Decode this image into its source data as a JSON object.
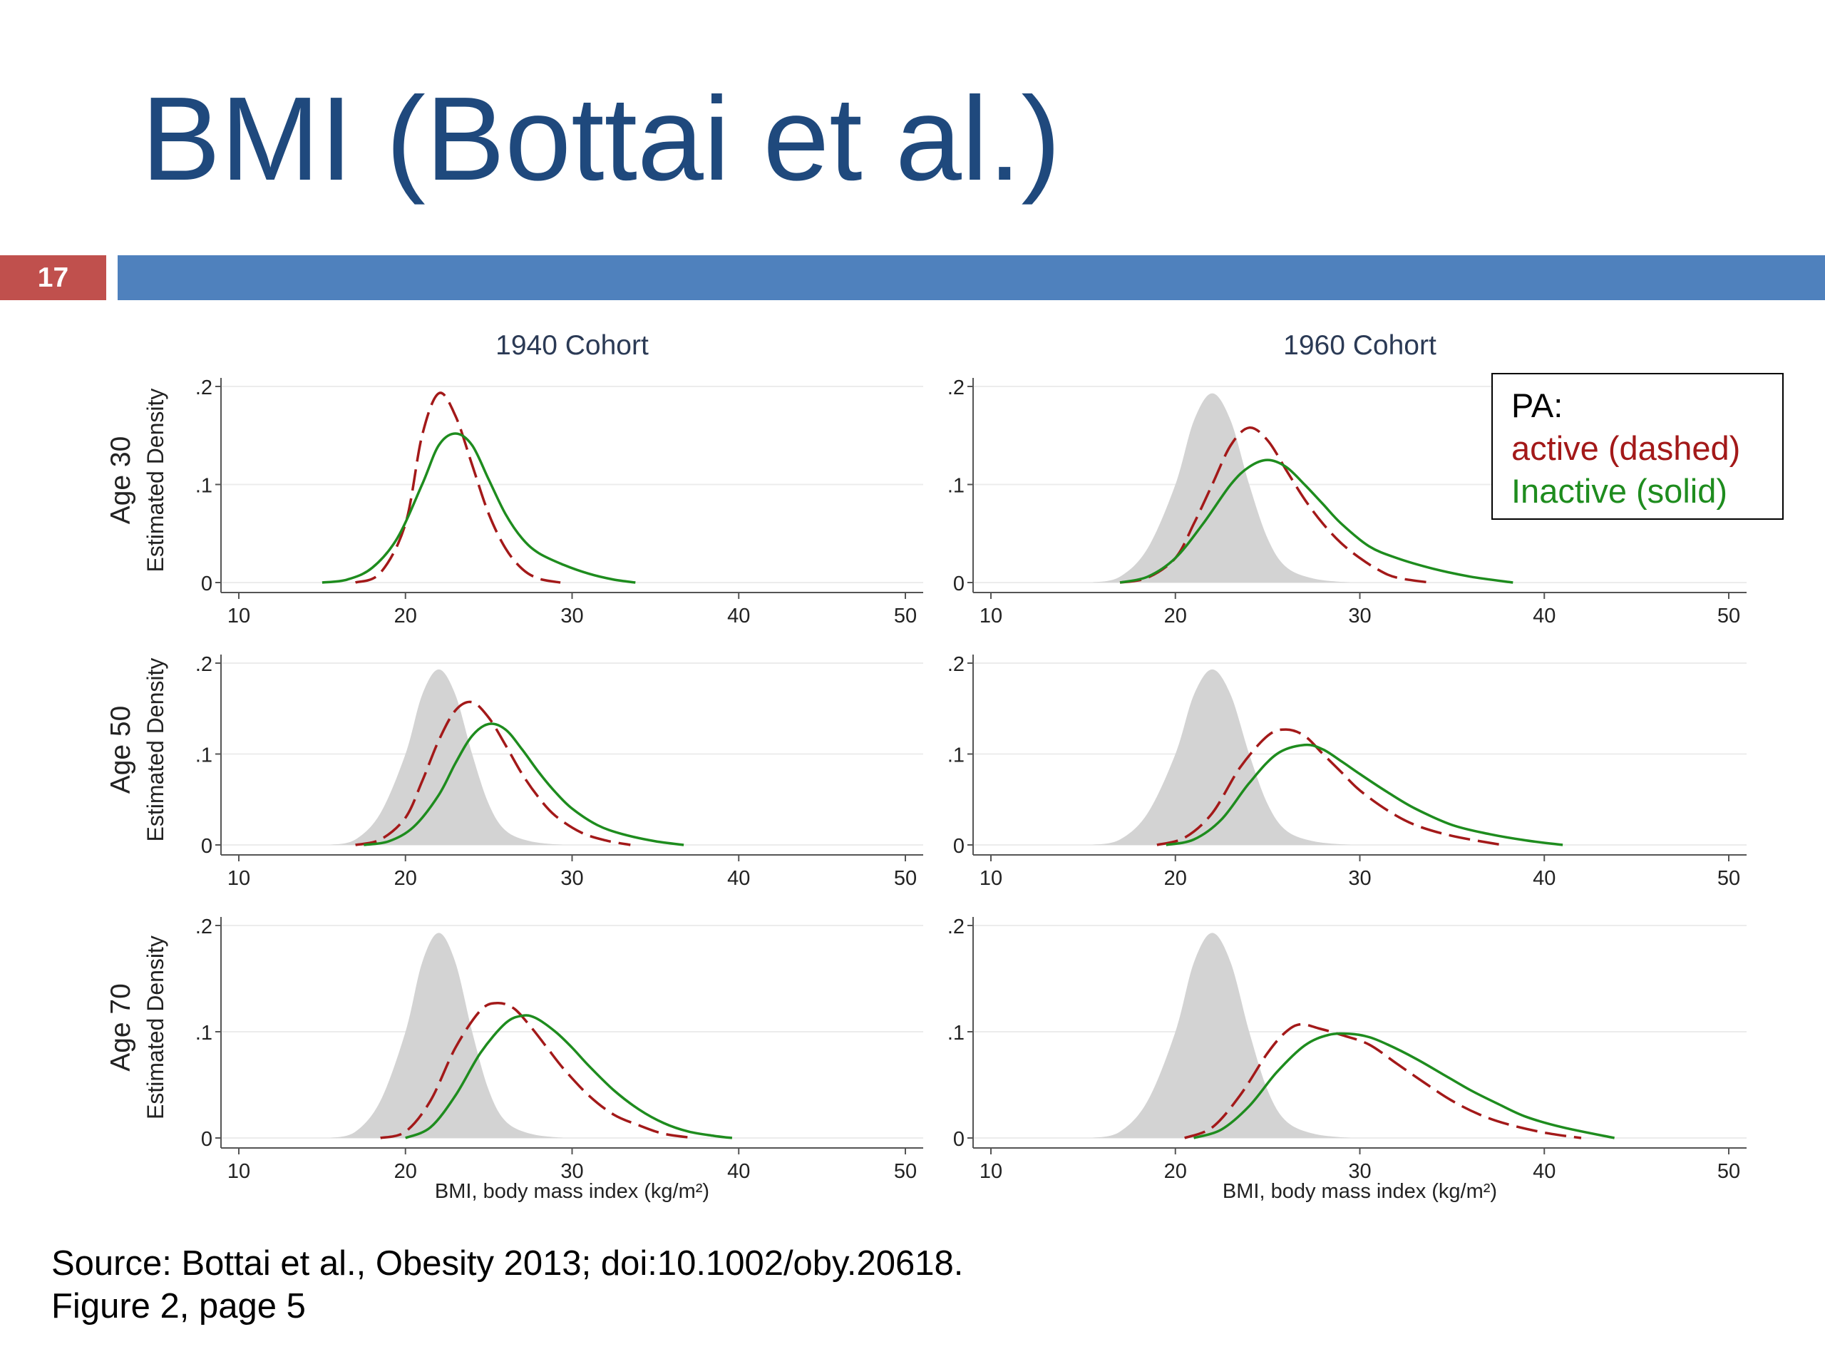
{
  "slide": {
    "title": "BMI (Bottai et al.)",
    "number": "17",
    "source_line1": "Source: Bottai et al., Obesity 2013; doi:10.1002/oby.20618.",
    "source_line2": "Figure 2, page 5"
  },
  "legend": {
    "title": "PA:",
    "active": "active (dashed)",
    "inactive": "Inactive (solid)"
  },
  "colors": {
    "title": "#1f497d",
    "accent_bar": "#4f81bd",
    "slide_number_bg": "#c0504d",
    "active": "#a31919",
    "inactive": "#1e8c1e",
    "reference_fill": "#d3d3d3"
  },
  "chart_data": {
    "type": "line",
    "columns": [
      "1940 Cohort",
      "1960 Cohort"
    ],
    "rows": [
      "Age 30",
      "Age 50",
      "Age 70"
    ],
    "ylabel": "Estimated Density",
    "xlabel": "BMI, body mass index (kg/m²)",
    "xlim": [
      10,
      50
    ],
    "ylim": [
      0,
      0.2
    ],
    "xticks": [
      10,
      20,
      30,
      40,
      50
    ],
    "xtick_labels": [
      "10",
      "20",
      "30",
      "40",
      "50"
    ],
    "yticks": [
      0,
      0.1,
      0.2
    ],
    "ytick_labels": [
      "0",
      ".1",
      ".2"
    ],
    "grid": true,
    "legend_position": "top-right",
    "reference": {
      "x": [
        15.5,
        17,
        18.5,
        20,
        21,
        22,
        23,
        24,
        25,
        26,
        27.5,
        29.5
      ],
      "y": [
        0,
        0.006,
        0.035,
        0.1,
        0.165,
        0.193,
        0.165,
        0.1,
        0.045,
        0.016,
        0.004,
        0
      ]
    },
    "panels": [
      {
        "row": 0,
        "col": 0,
        "show_reference": false,
        "series": [
          {
            "style": "dashed",
            "x": [
              17,
              18.5,
              20,
              21,
              22,
              23,
              24,
              25,
              26,
              27,
              28,
              29.3
            ],
            "y": [
              0,
              0.01,
              0.06,
              0.15,
              0.193,
              0.17,
              0.12,
              0.07,
              0.035,
              0.014,
              0.004,
              0
            ]
          },
          {
            "style": "solid",
            "x": [
              15,
              16.5,
              18,
              19.5,
              21,
              22,
              23,
              24,
              25,
              26,
              27,
              28,
              29.5,
              31,
              32.5,
              33.8
            ],
            "y": [
              0,
              0.003,
              0.015,
              0.045,
              0.1,
              0.14,
              0.152,
              0.14,
              0.105,
              0.07,
              0.045,
              0.03,
              0.018,
              0.009,
              0.003,
              0
            ]
          }
        ]
      },
      {
        "row": 0,
        "col": 1,
        "show_reference": true,
        "series": [
          {
            "style": "dashed",
            "x": [
              17,
              18.5,
              20,
              21,
              22,
              23,
              24,
              25,
              26,
              27,
              28,
              29,
              30,
              31,
              32,
              33.8
            ],
            "y": [
              0,
              0.005,
              0.025,
              0.06,
              0.1,
              0.14,
              0.158,
              0.145,
              0.115,
              0.085,
              0.06,
              0.04,
              0.025,
              0.013,
              0.005,
              0
            ]
          },
          {
            "style": "solid",
            "x": [
              17,
              18.5,
              20,
              21.5,
              23,
              24,
              25,
              26,
              27,
              28,
              29,
              30.5,
              32,
              34,
              36,
              38.3
            ],
            "y": [
              0,
              0.006,
              0.025,
              0.06,
              0.1,
              0.118,
              0.125,
              0.118,
              0.1,
              0.08,
              0.06,
              0.037,
              0.025,
              0.014,
              0.006,
              0
            ]
          }
        ]
      },
      {
        "row": 1,
        "col": 0,
        "show_reference": true,
        "series": [
          {
            "style": "dashed",
            "x": [
              17,
              18.5,
              20,
              21,
              22,
              23,
              24,
              25,
              26,
              27,
              28,
              29,
              30.5,
              32,
              33.5
            ],
            "y": [
              0,
              0.006,
              0.03,
              0.07,
              0.115,
              0.148,
              0.157,
              0.14,
              0.11,
              0.078,
              0.052,
              0.032,
              0.014,
              0.005,
              0
            ]
          },
          {
            "style": "solid",
            "x": [
              17.5,
              19,
              20.5,
              22,
              23,
              24,
              25,
              26,
              27,
              28,
              29,
              30,
              31.5,
              33,
              35,
              36.7
            ],
            "y": [
              0,
              0.004,
              0.02,
              0.055,
              0.09,
              0.12,
              0.133,
              0.127,
              0.105,
              0.08,
              0.058,
              0.04,
              0.022,
              0.012,
              0.004,
              0
            ]
          }
        ]
      },
      {
        "row": 1,
        "col": 1,
        "show_reference": true,
        "series": [
          {
            "style": "dashed",
            "x": [
              19,
              20.5,
              22,
              23.5,
              25,
              26,
              27,
              28,
              29,
              30,
              31.5,
              33,
              35,
              37.7
            ],
            "y": [
              0,
              0.008,
              0.035,
              0.085,
              0.12,
              0.127,
              0.12,
              0.1,
              0.08,
              0.06,
              0.038,
              0.022,
              0.01,
              0
            ]
          },
          {
            "style": "solid",
            "x": [
              19.5,
              21,
              22.5,
              24,
              25.5,
              27,
              28,
              29,
              30,
              31.5,
              33,
              35,
              37,
              39,
              41
            ],
            "y": [
              0,
              0.006,
              0.028,
              0.068,
              0.1,
              0.11,
              0.105,
              0.092,
              0.078,
              0.058,
              0.04,
              0.022,
              0.012,
              0.005,
              0
            ]
          }
        ]
      },
      {
        "row": 2,
        "col": 0,
        "show_reference": true,
        "series": [
          {
            "style": "dashed",
            "x": [
              18.5,
              20,
              21.5,
              23,
              24.5,
              25.5,
              26.5,
              27.5,
              28.5,
              29.5,
              31,
              32.5,
              34,
              35.5,
              37.3
            ],
            "y": [
              0,
              0.006,
              0.035,
              0.085,
              0.12,
              0.127,
              0.122,
              0.105,
              0.085,
              0.065,
              0.04,
              0.022,
              0.012,
              0.004,
              0
            ]
          },
          {
            "style": "solid",
            "x": [
              20,
              21.5,
              23,
              24.5,
              26,
              27,
              27.8,
              29,
              30,
              31,
              32.5,
              34,
              35.5,
              37,
              38.5,
              39.6
            ],
            "y": [
              0,
              0.01,
              0.04,
              0.08,
              0.108,
              0.115,
              0.113,
              0.1,
              0.085,
              0.068,
              0.045,
              0.027,
              0.014,
              0.006,
              0.002,
              0
            ]
          }
        ]
      },
      {
        "row": 2,
        "col": 1,
        "show_reference": true,
        "series": [
          {
            "style": "dashed",
            "x": [
              20.5,
              22,
              23.5,
              25,
              26,
              26.8,
              27.8,
              29,
              30.5,
              32,
              33.5,
              35,
              36.5,
              38,
              40,
              42
            ],
            "y": [
              0,
              0.01,
              0.04,
              0.08,
              0.1,
              0.107,
              0.103,
              0.097,
              0.088,
              0.07,
              0.052,
              0.035,
              0.022,
              0.013,
              0.005,
              0
            ]
          },
          {
            "style": "solid",
            "x": [
              21,
              22.5,
              24,
              25.5,
              27,
              28.3,
              29.5,
              30.5,
              31.5,
              33,
              34.5,
              36,
              37.5,
              39,
              41,
              43.8
            ],
            "y": [
              0,
              0.008,
              0.03,
              0.062,
              0.087,
              0.097,
              0.098,
              0.095,
              0.088,
              0.075,
              0.06,
              0.045,
              0.032,
              0.02,
              0.01,
              0
            ]
          }
        ]
      }
    ]
  }
}
